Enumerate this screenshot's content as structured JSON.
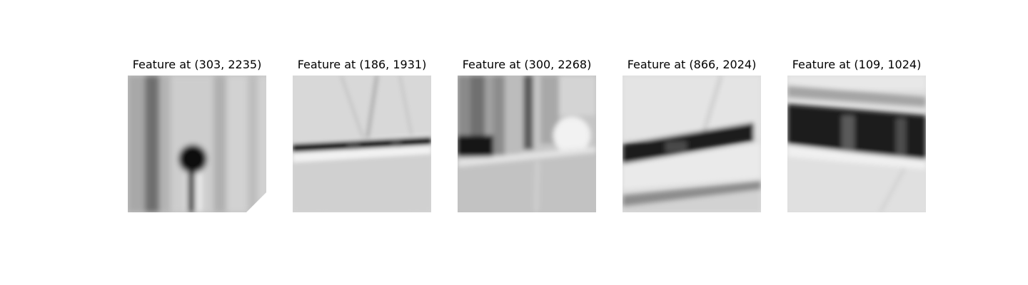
{
  "patches": [
    {
      "title": "Feature at (303, 2235)"
    },
    {
      "title": "Feature at (186, 1931)"
    },
    {
      "title": "Feature at (300, 2268)"
    },
    {
      "title": "Feature at (866, 2024)"
    },
    {
      "title": "Feature at (109, 1024)"
    }
  ]
}
